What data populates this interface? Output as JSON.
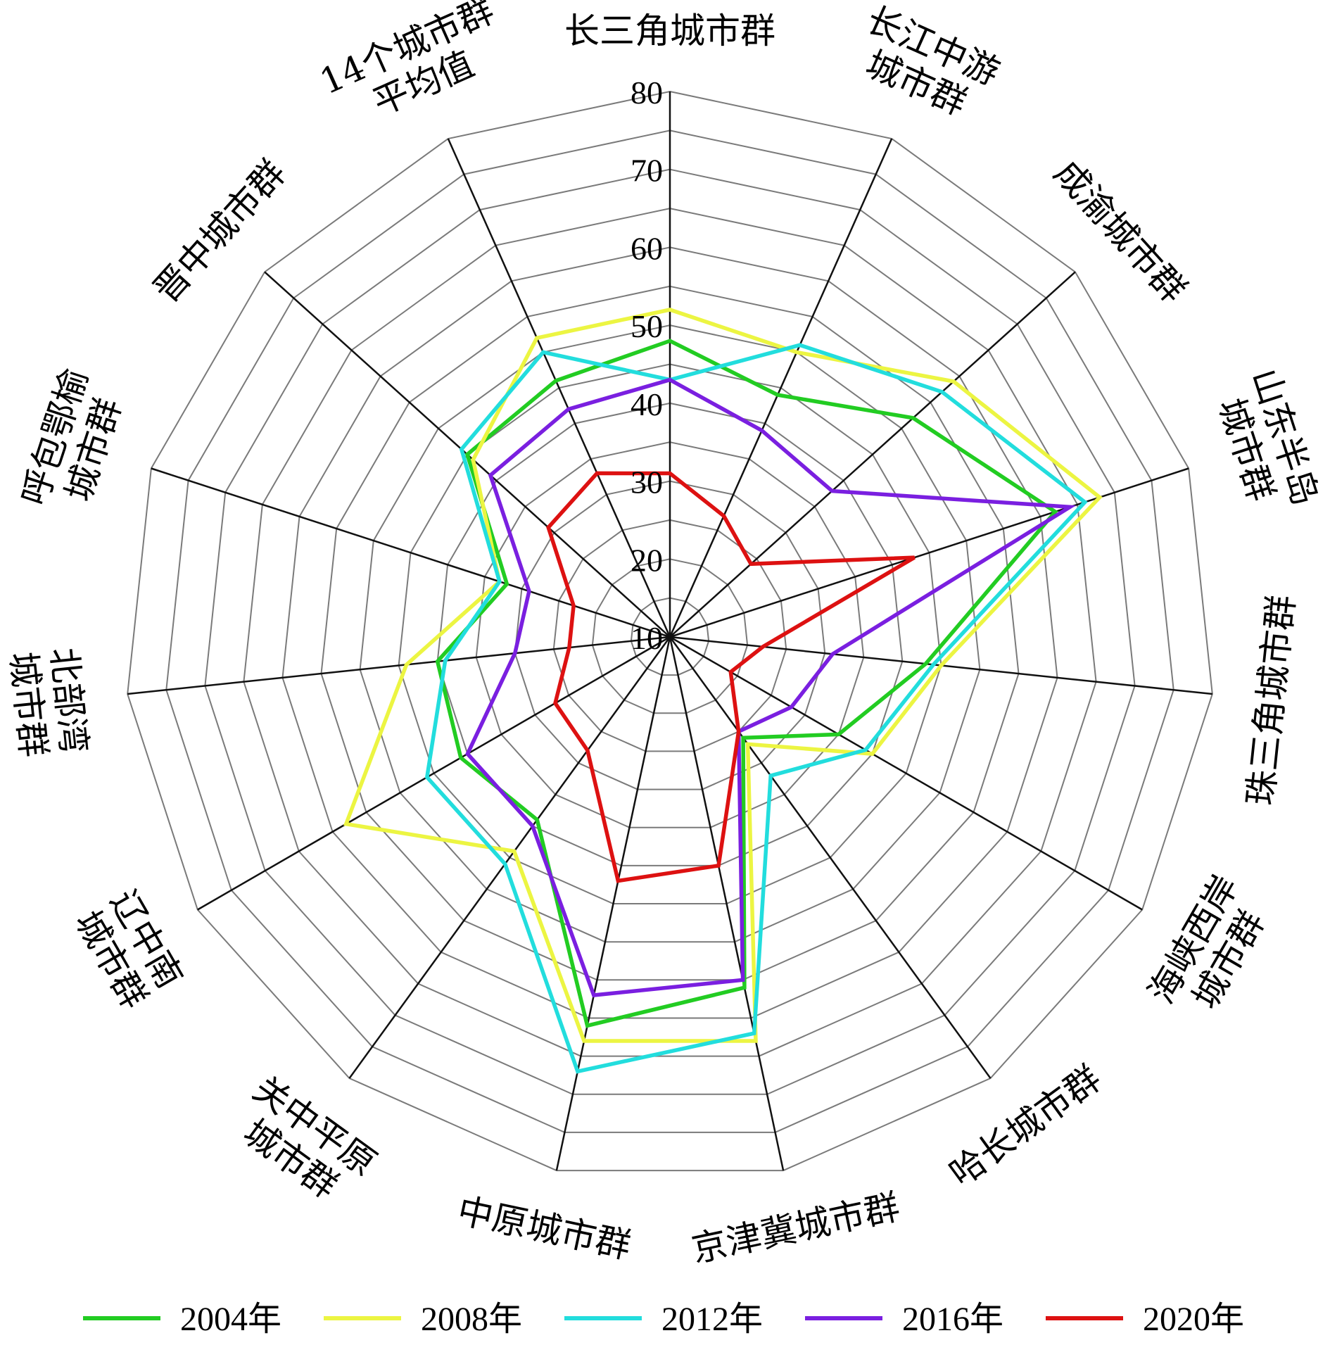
{
  "chart_data": {
    "type": "radar",
    "title": "",
    "rlim": [
      10,
      80
    ],
    "ticks": [
      10,
      20,
      30,
      40,
      50,
      60,
      70,
      80
    ],
    "grid": true,
    "legend_position": "bottom",
    "categories": [
      "长三角城市群",
      "长江中游\n城市群",
      "成渝城市群",
      "山东半岛\n城市群",
      "珠三角城市群",
      "海峡西岸\n城市群",
      "哈长城市群",
      "京津冀城市群",
      "中原城市群",
      "关中平原\n城市群",
      "辽中南\n城市群",
      "北部湾\n城市群",
      "呼包鄂榆\n城市群",
      "晋中城市群",
      "14个城市群\n平均值"
    ],
    "series": [
      {
        "name": "2004年",
        "color": "#22cc22",
        "values": [
          48,
          44,
          52,
          62,
          43,
          35,
          26,
          56,
          61,
          39,
          41,
          40,
          32,
          45,
          46
        ]
      },
      {
        "name": "2008年",
        "color": "#ecf542",
        "values": [
          52,
          50,
          59,
          68,
          45,
          40,
          27,
          63,
          63,
          44,
          58,
          44,
          33,
          44,
          52
        ]
      },
      {
        "name": "2012年",
        "color": "#22dddd",
        "values": [
          43,
          51,
          57,
          66,
          44,
          39,
          32,
          62,
          67,
          46,
          46,
          39,
          33,
          46,
          50
        ]
      },
      {
        "name": "2016年",
        "color": "#7a1fe0",
        "values": [
          43,
          39,
          38,
          64,
          31,
          28,
          25,
          55,
          57,
          40,
          40,
          30,
          29,
          41,
          42
        ]
      },
      {
        "name": "2020年",
        "color": "#dd1111",
        "values": [
          31,
          27,
          24,
          43,
          22,
          19,
          25,
          40,
          42,
          28,
          27,
          23,
          23,
          31,
          33
        ]
      }
    ]
  }
}
